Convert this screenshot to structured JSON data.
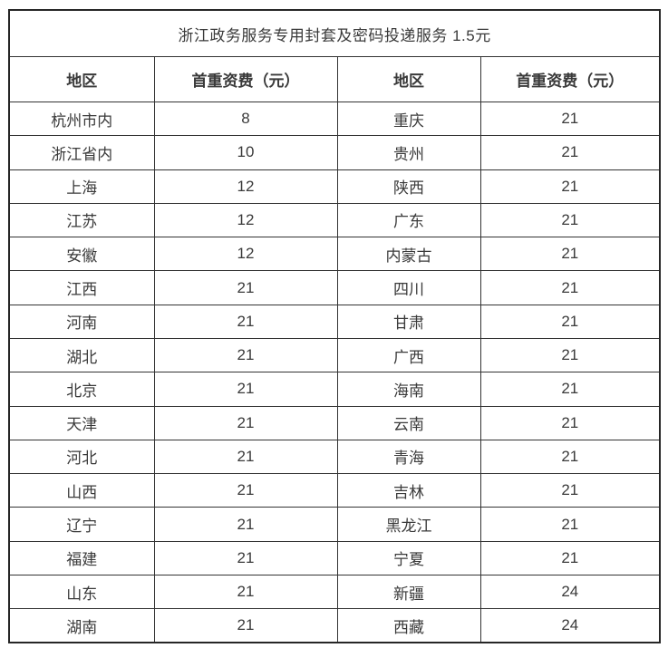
{
  "table": {
    "title": "浙江政务服务专用封套及密码投递服务 1.5元",
    "headers": [
      "地区",
      "首重资费（元）",
      "地区",
      "首重资费（元）"
    ],
    "rows": [
      [
        "杭州市内",
        "8",
        "重庆",
        "21"
      ],
      [
        "浙江省内",
        "10",
        "贵州",
        "21"
      ],
      [
        "上海",
        "12",
        "陕西",
        "21"
      ],
      [
        "江苏",
        "12",
        "广东",
        "21"
      ],
      [
        "安徽",
        "12",
        "内蒙古",
        "21"
      ],
      [
        "江西",
        "21",
        "四川",
        "21"
      ],
      [
        "河南",
        "21",
        "甘肃",
        "21"
      ],
      [
        "湖北",
        "21",
        "广西",
        "21"
      ],
      [
        "北京",
        "21",
        "海南",
        "21"
      ],
      [
        "天津",
        "21",
        "云南",
        "21"
      ],
      [
        "河北",
        "21",
        "青海",
        "21"
      ],
      [
        "山西",
        "21",
        "吉林",
        "21"
      ],
      [
        "辽宁",
        "21",
        "黑龙江",
        "21"
      ],
      [
        "福建",
        "21",
        "宁夏",
        "21"
      ],
      [
        "山东",
        "21",
        "新疆",
        "24"
      ],
      [
        "湖南",
        "21",
        "西藏",
        "24"
      ]
    ],
    "colors": {
      "text": "#3a3a3a",
      "border": "#333333",
      "outer_border": "#262626",
      "background": "#ffffff"
    }
  }
}
